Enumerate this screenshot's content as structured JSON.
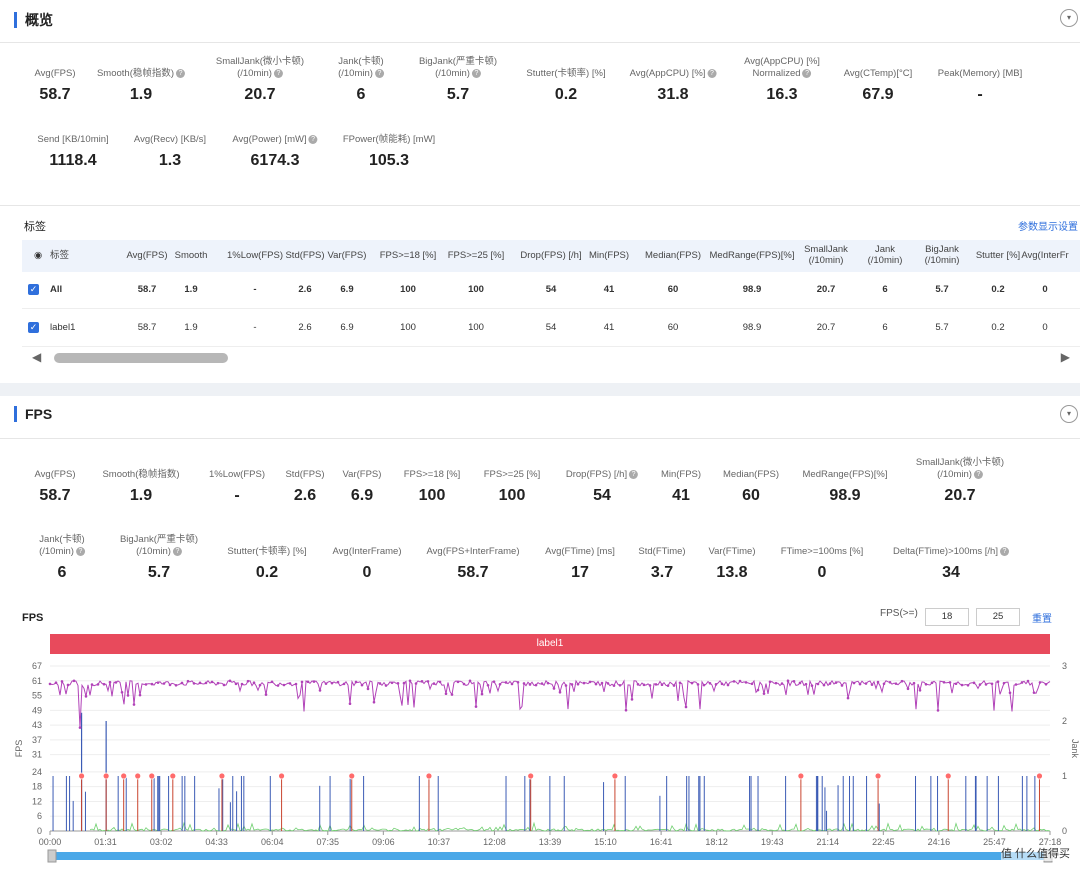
{
  "overview": {
    "title": "概览",
    "metrics_row1": [
      {
        "label": "Avg(FPS)",
        "value": "58.7",
        "help": false
      },
      {
        "label": "Smooth(稳帧指数)",
        "value": "1.9",
        "help": true
      },
      {
        "label": "SmallJank(微小卡顿)\n(/10min)",
        "value": "20.7",
        "help": true
      },
      {
        "label": "Jank(卡顿)\n(/10min)",
        "value": "6",
        "help": true
      },
      {
        "label": "BigJank(严重卡顿)\n(/10min)",
        "value": "5.7",
        "help": true
      },
      {
        "label": "Stutter(卡顿率) [%]",
        "value": "0.2",
        "help": false
      },
      {
        "label": "Avg(AppCPU) [%]",
        "value": "31.8",
        "help": true
      },
      {
        "label": "Avg(AppCPU) [%]\nNormalized",
        "value": "16.3",
        "help": true
      },
      {
        "label": "Avg(CTemp)[°C]",
        "value": "67.9",
        "help": false
      },
      {
        "label": "Peak(Memory) [MB]",
        "value": "-",
        "help": false
      }
    ],
    "metrics_row2": [
      {
        "label": "Send [KB/10min]",
        "value": "1118.4",
        "help": false
      },
      {
        "label": "Avg(Recv) [KB/s]",
        "value": "1.3",
        "help": false
      },
      {
        "label": "Avg(Power) [mW]",
        "value": "6174.3",
        "help": true
      },
      {
        "label": "FPower(帧能耗) [mW]",
        "value": "105.3",
        "help": false
      }
    ],
    "tags_title": "标签",
    "tags_link": "参数显示设置",
    "table": {
      "headers": [
        "标签",
        "Avg(FPS)",
        "Smooth",
        "1%Low(FPS)",
        "Std(FPS)",
        "Var(FPS)",
        "FPS>=18 [%]",
        "FPS>=25 [%]",
        "Drop(FPS) [/h]",
        "Min(FPS)",
        "Median(FPS)",
        "MedRange(FPS)[%]",
        "SmallJank\n(/10min)",
        "Jank\n(/10min)",
        "BigJank\n(/10min)",
        "Stutter [%]",
        "Avg(InterFr"
      ],
      "rows": [
        {
          "name": "All",
          "values": [
            "58.7",
            "1.9",
            "-",
            "2.6",
            "6.9",
            "100",
            "100",
            "54",
            "41",
            "60",
            "98.9",
            "20.7",
            "6",
            "5.7",
            "0.2",
            "0"
          ]
        },
        {
          "name": "label1",
          "values": [
            "58.7",
            "1.9",
            "-",
            "2.6",
            "6.9",
            "100",
            "100",
            "54",
            "41",
            "60",
            "98.9",
            "20.7",
            "6",
            "5.7",
            "0.2",
            "0"
          ]
        }
      ]
    }
  },
  "fps": {
    "title": "FPS",
    "metrics_row1": [
      {
        "label": "Avg(FPS)",
        "value": "58.7",
        "help": false
      },
      {
        "label": "Smooth(稳帧指数)",
        "value": "1.9",
        "help": false
      },
      {
        "label": "1%Low(FPS)",
        "value": "-",
        "help": false
      },
      {
        "label": "Std(FPS)",
        "value": "2.6",
        "help": false
      },
      {
        "label": "Var(FPS)",
        "value": "6.9",
        "help": false
      },
      {
        "label": "FPS>=18 [%]",
        "value": "100",
        "help": false
      },
      {
        "label": "FPS>=25 [%]",
        "value": "100",
        "help": false
      },
      {
        "label": "Drop(FPS) [/h]",
        "value": "54",
        "help": true
      },
      {
        "label": "Min(FPS)",
        "value": "41",
        "help": false
      },
      {
        "label": "Median(FPS)",
        "value": "60",
        "help": false
      },
      {
        "label": "MedRange(FPS)[%]",
        "value": "98.9",
        "help": false
      },
      {
        "label": "SmallJank(微小卡顿)\n(/10min)",
        "value": "20.7",
        "help": true
      }
    ],
    "metrics_row2": [
      {
        "label": "Jank(卡顿)\n(/10min)",
        "value": "6",
        "help": true
      },
      {
        "label": "BigJank(严重卡顿)\n(/10min)",
        "value": "5.7",
        "help": true
      },
      {
        "label": "Stutter(卡顿率) [%]",
        "value": "0.2",
        "help": false
      },
      {
        "label": "Avg(InterFrame)",
        "value": "0",
        "help": false
      },
      {
        "label": "Avg(FPS+InterFrame)",
        "value": "58.7",
        "help": false
      },
      {
        "label": "Avg(FTime) [ms]",
        "value": "17",
        "help": false
      },
      {
        "label": "Std(FTime)",
        "value": "3.7",
        "help": false
      },
      {
        "label": "Var(FTime)",
        "value": "13.8",
        "help": false
      },
      {
        "label": "FTime>=100ms [%]",
        "value": "0",
        "help": false
      },
      {
        "label": "Delta(FTime)>100ms [/h]",
        "value": "34",
        "help": true
      }
    ],
    "chart_title": "FPS",
    "fps_filter_label": "FPS(>=)",
    "fps_filter_values": [
      "18",
      "25"
    ],
    "reset_label": "重置",
    "label_bar": "label1"
  },
  "watermark": "值 什么值得买",
  "chart_data": {
    "type": "line",
    "ylabel": "FPS",
    "y2label": "Jank",
    "yticks": [
      0,
      6,
      12,
      18,
      24,
      31,
      37,
      43,
      49,
      55,
      61,
      67
    ],
    "y2ticks": [
      0,
      1,
      2,
      3
    ],
    "xticks": [
      "00:00",
      "01:31",
      "03:02",
      "04:33",
      "06:04",
      "07:35",
      "09:06",
      "10:37",
      "12:08",
      "13:39",
      "15:10",
      "16:41",
      "18:12",
      "19:43",
      "21:14",
      "22:45",
      "24:16",
      "25:47",
      "27:18"
    ],
    "ylim": [
      0,
      67
    ],
    "y2lim": [
      0,
      3
    ],
    "series": [
      {
        "color": "#b142b8",
        "type": "fps",
        "typical": 60,
        "min": 41
      },
      {
        "color": "#3b5bb5",
        "type": "jank-spikes"
      },
      {
        "color": "#6fcf6f",
        "type": "interframe-noise"
      }
    ],
    "bigjank_markers_minutes": [
      0.9,
      1.6,
      2.1,
      2.5,
      2.9,
      3.5,
      4.9,
      6.6,
      8.6,
      10.8,
      13.7,
      16.1,
      21.4,
      23.6,
      25.6,
      28.2
    ]
  }
}
